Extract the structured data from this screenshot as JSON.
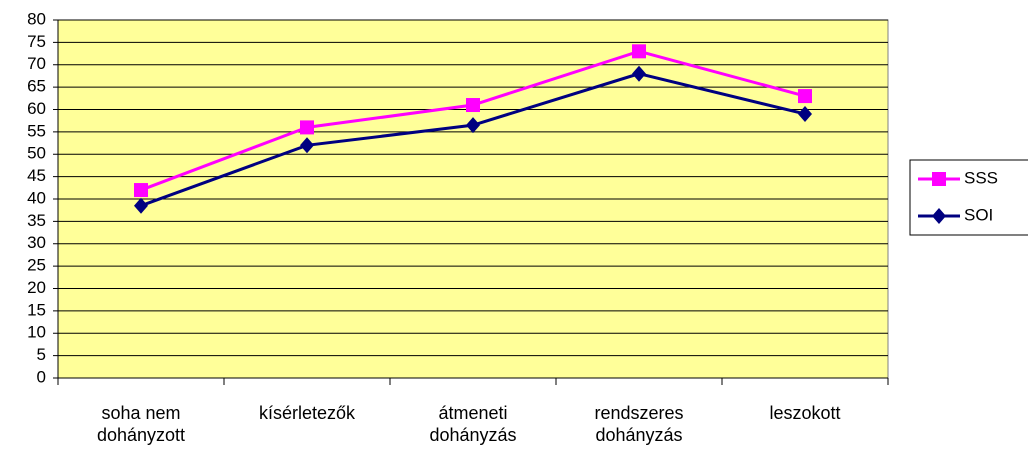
{
  "chart_data": {
    "type": "line",
    "categories": [
      "soha nem dohányzott",
      "kísérletezők",
      "átmeneti dohányzás",
      "rendszeres dohányzás",
      "leszokott"
    ],
    "series": [
      {
        "name": "SSS",
        "color": "#ff00ff",
        "marker": "square",
        "values": [
          42,
          56,
          61,
          73,
          63
        ]
      },
      {
        "name": "SOI",
        "color": "#000080",
        "marker": "diamond",
        "values": [
          38.5,
          52,
          56.5,
          68,
          59
        ]
      }
    ],
    "ylim": [
      0,
      80
    ],
    "yticks": [
      0,
      5,
      10,
      15,
      20,
      25,
      30,
      35,
      40,
      45,
      50,
      55,
      60,
      65,
      70,
      75,
      80
    ],
    "grid": true,
    "legend": "right",
    "plot_background": "#ffff99"
  }
}
